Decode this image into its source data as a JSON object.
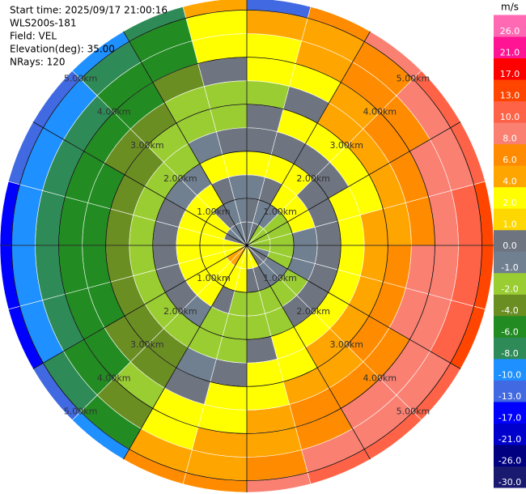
{
  "chart_data": {
    "type": "ppi",
    "info": [
      "Start time: 2025/09/17 21:00:16",
      "WLS200s-181",
      "Field: VEL",
      "Elevation(deg): 35.00",
      "NRays: 120"
    ],
    "colorbar_label": "m/s",
    "azimuth": [
      0,
      15,
      30,
      45,
      60,
      75,
      90,
      105,
      120,
      135,
      150,
      165,
      180,
      195,
      210,
      225,
      240,
      255,
      270,
      285,
      300,
      315,
      330,
      345,
      360
    ],
    "range_edges": [
      0,
      0.5,
      1,
      1.5,
      2,
      2.5,
      3,
      3.5,
      4,
      4.5,
      5,
      5.25
    ],
    "rlim": [
      0,
      5.25
    ],
    "rings": [
      {
        "value": 1,
        "label": "1.00km"
      },
      {
        "value": 2,
        "label": "2.00km"
      },
      {
        "value": 3,
        "label": "3.00km"
      },
      {
        "value": 4,
        "label": "4.00km"
      },
      {
        "value": 5,
        "label": "5.00km"
      }
    ],
    "values": [
      [
        -0.5,
        0.5,
        -0.5,
        3,
        0.5,
        0.5,
        -1.5,
        3,
        3,
        5,
        -12
      ],
      [
        0.5,
        -0.5,
        0.5,
        3,
        0.5,
        3,
        0.5,
        3,
        5,
        5,
        7
      ],
      [
        -1.5,
        -0.5,
        3,
        3,
        0.5,
        3,
        5,
        5,
        7,
        7,
        9
      ],
      [
        -1.5,
        -1.5,
        3,
        0.5,
        0.5,
        3,
        5,
        7,
        7,
        9,
        11
      ],
      [
        -1.5,
        -1.5,
        3,
        0.5,
        3,
        3,
        5,
        7,
        9,
        9,
        11
      ],
      [
        -1.5,
        -1.5,
        -0.5,
        0.5,
        3,
        5,
        5,
        7,
        9,
        11,
        15
      ],
      [
        -1.5,
        -1.5,
        -0.5,
        0.5,
        3,
        5,
        7,
        9,
        9,
        11,
        15
      ],
      [
        -0.5,
        -1.5,
        -0.5,
        0.5,
        3,
        5,
        7,
        9,
        9,
        11,
        15
      ],
      [
        0.5,
        -0.5,
        -1.5,
        0.5,
        3,
        5,
        7,
        7,
        9,
        9,
        11
      ],
      [
        0.5,
        -0.5,
        -1.5,
        0.5,
        3,
        5,
        5,
        7,
        9,
        9,
        11
      ],
      [
        3,
        0.5,
        -1.5,
        -1.5,
        3,
        3,
        5,
        7,
        7,
        9,
        11
      ],
      [
        3,
        0.5,
        -1.5,
        -1.5,
        0.5,
        3,
        3,
        5,
        5,
        7,
        9
      ],
      [
        3,
        3,
        -1.5,
        -1.5,
        -1.5,
        0.5,
        3,
        3,
        5,
        5,
        7
      ],
      [
        3,
        3,
        0.5,
        -1.5,
        -1.5,
        -0.5,
        0.5,
        3,
        3,
        5,
        7
      ],
      [
        5,
        3,
        3,
        -0.5,
        -1.5,
        -3,
        -3,
        -1.5,
        -3,
        -5,
        -9
      ],
      [
        5,
        3,
        3,
        0.5,
        -1.5,
        -3,
        -3,
        -5,
        -5,
        -7,
        -11
      ],
      [
        3,
        3,
        3,
        0.5,
        -1.5,
        -3,
        -5,
        -5,
        -7,
        -9,
        -15
      ],
      [
        3,
        3,
        3,
        0.5,
        -1.5,
        -3,
        -5,
        -5,
        -7,
        -9,
        -15
      ],
      [
        3,
        3,
        3,
        0.5,
        -1.5,
        -3,
        -5,
        -5,
        -7,
        -9,
        -15
      ],
      [
        0.5,
        3,
        3,
        0.5,
        -1.5,
        -3,
        -5,
        -5,
        -7,
        -9,
        -11
      ],
      [
        -0.5,
        3,
        3,
        -0.5,
        -1.5,
        -3,
        -3,
        -5,
        -7,
        -9,
        -11
      ],
      [
        -0.5,
        0.5,
        3,
        -0.5,
        -1.5,
        -1.5,
        -3,
        -5,
        -5,
        -7,
        -9
      ],
      [
        -0.5,
        -0.5,
        0.5,
        3,
        -0.5,
        -1.5,
        -1.5,
        -3,
        -5,
        -5,
        -7
      ],
      [
        0.5,
        -0.5,
        -0.5,
        3,
        0.5,
        -1.5,
        -1.5,
        0.5,
        3,
        3,
        5
      ]
    ],
    "cticks": [
      {
        "value": -30,
        "label": "-30.0"
      },
      {
        "value": -26,
        "label": "-26.0"
      },
      {
        "value": -21,
        "label": "-21.0"
      },
      {
        "value": -17,
        "label": "-17.0"
      },
      {
        "value": -13,
        "label": "-13.0"
      },
      {
        "value": -10,
        "label": "-10.0"
      },
      {
        "value": -8,
        "label": "-8.0"
      },
      {
        "value": -6,
        "label": "-6.0"
      },
      {
        "value": -4,
        "label": "-4.0"
      },
      {
        "value": -2,
        "label": "-2.0"
      },
      {
        "value": -1,
        "label": "-1.0"
      },
      {
        "value": 0,
        "label": "0.0"
      },
      {
        "value": 1,
        "label": "1.0"
      },
      {
        "value": 2,
        "label": "2.0"
      },
      {
        "value": 4,
        "label": "4.0"
      },
      {
        "value": 6,
        "label": "6.0"
      },
      {
        "value": 8,
        "label": "8.0"
      },
      {
        "value": 10,
        "label": "10.0"
      },
      {
        "value": 13,
        "label": "13.0"
      },
      {
        "value": 17,
        "label": "17.0"
      },
      {
        "value": 21,
        "label": "21.0"
      },
      {
        "value": 26,
        "label": "26.0"
      }
    ],
    "colors": [
      "#191970",
      "#000080",
      "#0000cd",
      "#0000ff",
      "#4169e1",
      "#1e90ff",
      "#2e8b57",
      "#228b22",
      "#6b8e23",
      "#9acd32",
      "#708090",
      "#6e7480",
      "#ffd700",
      "#ffff00",
      "#ffa500",
      "#ff8c00",
      "#fa8072",
      "#ff6347",
      "#ff4500",
      "#ff0000",
      "#ff1493",
      "#ff69b4"
    ]
  }
}
